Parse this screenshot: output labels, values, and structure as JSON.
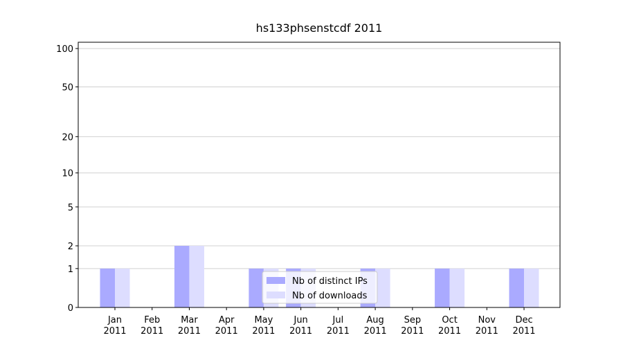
{
  "chart_data": {
    "type": "bar",
    "title": "hs133phsenstcdf 2011",
    "categories": [
      "Jan\n2011",
      "Feb\n2011",
      "Mar\n2011",
      "Apr\n2011",
      "May\n2011",
      "Jun\n2011",
      "Jul\n2011",
      "Aug\n2011",
      "Sep\n2011",
      "Oct\n2011",
      "Nov\n2011",
      "Dec\n2011"
    ],
    "series": [
      {
        "name": "Nb of distinct IPs",
        "color": "#aaaaff",
        "values": [
          1,
          0,
          2,
          0,
          1,
          1,
          0,
          1,
          0,
          1,
          0,
          1
        ]
      },
      {
        "name": "Nb of downloads",
        "color": "#ddddff",
        "values": [
          1,
          0,
          2,
          0,
          1,
          1,
          0,
          1,
          0,
          1,
          0,
          1
        ]
      }
    ],
    "yscale": "log1p",
    "ylim": [
      0,
      112
    ],
    "yticks": [
      0,
      1,
      2,
      5,
      10,
      20,
      50,
      100
    ],
    "grid": true,
    "legend": "lower center"
  }
}
